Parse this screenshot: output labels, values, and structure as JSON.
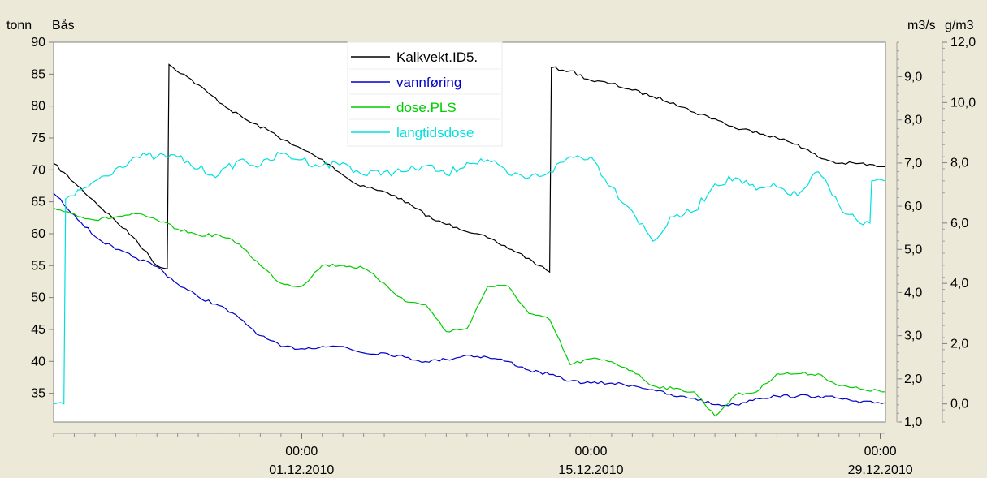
{
  "chart_data": {
    "type": "line",
    "left_axis_units": [
      "tonn",
      "Bås"
    ],
    "axes": {
      "left": {
        "min": 30.5,
        "max": 90,
        "ticks": [
          90,
          85,
          80,
          75,
          70,
          65,
          60,
          55,
          50,
          45,
          40,
          35
        ]
      },
      "mid": {
        "unit": "m3/s",
        "min": 1.0,
        "max": 9.8,
        "ticks": [
          "9,0",
          "8,0",
          "7,0",
          "6,0",
          "5,0",
          "4,0",
          "3,0",
          "2,0",
          "1,0"
        ]
      },
      "right": {
        "unit": "g/m3",
        "min": -0.6,
        "max": 12.0,
        "ticks": [
          "12,0",
          "10,0",
          "8,0",
          "6,0",
          "4,0",
          "2,0",
          "0,0"
        ]
      }
    },
    "x_range": [
      "2010-11-19",
      "2010-12-29T06:00"
    ],
    "x_ticks": [
      {
        "date": "2010-12-01",
        "time": "00:00",
        "label": "01.12.2010"
      },
      {
        "date": "2010-12-15",
        "time": "00:00",
        "label": "15.12.2010"
      },
      {
        "date": "2010-12-29",
        "time": "00:00",
        "label": "29.12.2010"
      }
    ],
    "legend_position": "top-center",
    "series": [
      {
        "name": "Kalkvekt.ID5.",
        "axis": "left",
        "color": "#000000",
        "points": [
          [
            "2010-11-19T00:00",
            71.0
          ],
          [
            "2010-11-20T00:00",
            68.0
          ],
          [
            "2010-11-21T00:00",
            65.0
          ],
          [
            "2010-11-22T00:00",
            62.0
          ],
          [
            "2010-11-23T00:00",
            59.0
          ],
          [
            "2010-11-24T00:00",
            55.0
          ],
          [
            "2010-11-24T12:00",
            54.5
          ],
          [
            "2010-11-24T14:00",
            86.5
          ],
          [
            "2010-11-25T12:00",
            84.5
          ],
          [
            "2010-11-26T12:00",
            82.0
          ],
          [
            "2010-11-27T12:00",
            79.5
          ],
          [
            "2010-11-28T12:00",
            77.5
          ],
          [
            "2010-11-29T12:00",
            76.0
          ],
          [
            "2010-11-30T12:00",
            74.0
          ],
          [
            "2010-12-01T12:00",
            72.5
          ],
          [
            "2010-12-02T12:00",
            70.5
          ],
          [
            "2010-12-03T12:00",
            68.0
          ],
          [
            "2010-12-04T12:00",
            67.0
          ],
          [
            "2010-12-05T12:00",
            66.0
          ],
          [
            "2010-12-06T12:00",
            64.0
          ],
          [
            "2010-12-07T12:00",
            62.0
          ],
          [
            "2010-12-08T12:00",
            61.0
          ],
          [
            "2010-12-09T12:00",
            60.0
          ],
          [
            "2010-12-10T12:00",
            58.5
          ],
          [
            "2010-12-11T12:00",
            57.0
          ],
          [
            "2010-12-12T12:00",
            55.0
          ],
          [
            "2010-12-13T00:00",
            54.0
          ],
          [
            "2010-12-13T02:00",
            86.0
          ],
          [
            "2010-12-14T00:00",
            85.5
          ],
          [
            "2010-12-15T00:00",
            84.0
          ],
          [
            "2010-12-16T00:00",
            83.5
          ],
          [
            "2010-12-17T00:00",
            82.5
          ],
          [
            "2010-12-18T00:00",
            81.5
          ],
          [
            "2010-12-19T00:00",
            80.5
          ],
          [
            "2010-12-20T00:00",
            79.0
          ],
          [
            "2010-12-21T00:00",
            78.0
          ],
          [
            "2010-12-22T00:00",
            76.5
          ],
          [
            "2010-12-23T00:00",
            76.0
          ],
          [
            "2010-12-24T00:00",
            75.0
          ],
          [
            "2010-12-25T00:00",
            74.0
          ],
          [
            "2010-12-26T00:00",
            72.0
          ],
          [
            "2010-12-27T00:00",
            71.0
          ],
          [
            "2010-12-28T00:00",
            71.0
          ],
          [
            "2010-12-29T00:00",
            70.5
          ],
          [
            "2010-12-29T06:00",
            70.5
          ]
        ]
      },
      {
        "name": "vannføring",
        "axis": "mid",
        "color": "#0000cc",
        "points": [
          [
            "2010-11-19T00:00",
            6.3
          ],
          [
            "2010-11-20T00:00",
            5.8
          ],
          [
            "2010-11-21T00:00",
            5.3
          ],
          [
            "2010-11-22T00:00",
            5.0
          ],
          [
            "2010-11-23T00:00",
            4.8
          ],
          [
            "2010-11-24T00:00",
            4.6
          ],
          [
            "2010-11-25T00:00",
            4.2
          ],
          [
            "2010-11-26T00:00",
            3.9
          ],
          [
            "2010-11-27T00:00",
            3.7
          ],
          [
            "2010-11-28T00:00",
            3.4
          ],
          [
            "2010-11-29T00:00",
            3.0
          ],
          [
            "2010-11-30T00:00",
            2.75
          ],
          [
            "2010-12-01T00:00",
            2.7
          ],
          [
            "2010-12-02T00:00",
            2.75
          ],
          [
            "2010-12-03T00:00",
            2.75
          ],
          [
            "2010-12-04T00:00",
            2.6
          ],
          [
            "2010-12-05T00:00",
            2.6
          ],
          [
            "2010-12-06T00:00",
            2.5
          ],
          [
            "2010-12-07T00:00",
            2.4
          ],
          [
            "2010-12-08T00:00",
            2.45
          ],
          [
            "2010-12-09T00:00",
            2.55
          ],
          [
            "2010-12-10T00:00",
            2.5
          ],
          [
            "2010-12-11T00:00",
            2.4
          ],
          [
            "2010-12-12T00:00",
            2.2
          ],
          [
            "2010-12-13T00:00",
            2.1
          ],
          [
            "2010-12-14T00:00",
            1.95
          ],
          [
            "2010-12-15T00:00",
            1.9
          ],
          [
            "2010-12-16T00:00",
            1.9
          ],
          [
            "2010-12-17T00:00",
            1.85
          ],
          [
            "2010-12-18T00:00",
            1.75
          ],
          [
            "2010-12-19T00:00",
            1.6
          ],
          [
            "2010-12-20T00:00",
            1.55
          ],
          [
            "2010-12-21T00:00",
            1.4
          ],
          [
            "2010-12-22T00:00",
            1.4
          ],
          [
            "2010-12-23T00:00",
            1.55
          ],
          [
            "2010-12-24T00:00",
            1.6
          ],
          [
            "2010-12-25T00:00",
            1.6
          ],
          [
            "2010-12-26T00:00",
            1.6
          ],
          [
            "2010-12-27T00:00",
            1.55
          ],
          [
            "2010-12-28T00:00",
            1.45
          ],
          [
            "2010-12-29T06:00",
            1.45
          ]
        ]
      },
      {
        "name": "dose.PLS",
        "axis": "right",
        "color": "#00cc00",
        "points": [
          [
            "2010-11-19T00:00",
            6.5
          ],
          [
            "2010-11-20T00:00",
            6.3
          ],
          [
            "2010-11-21T00:00",
            6.1
          ],
          [
            "2010-11-22T00:00",
            6.2
          ],
          [
            "2010-11-23T00:00",
            6.3
          ],
          [
            "2010-11-24T00:00",
            6.1
          ],
          [
            "2010-11-25T00:00",
            5.8
          ],
          [
            "2010-11-26T00:00",
            5.6
          ],
          [
            "2010-11-27T00:00",
            5.6
          ],
          [
            "2010-11-28T00:00",
            5.3
          ],
          [
            "2010-11-29T00:00",
            4.6
          ],
          [
            "2010-11-30T00:00",
            4.0
          ],
          [
            "2010-12-01T00:00",
            3.9
          ],
          [
            "2010-12-02T00:00",
            4.6
          ],
          [
            "2010-12-03T00:00",
            4.6
          ],
          [
            "2010-12-04T00:00",
            4.5
          ],
          [
            "2010-12-05T00:00",
            4.0
          ],
          [
            "2010-12-06T00:00",
            3.4
          ],
          [
            "2010-12-07T00:00",
            3.3
          ],
          [
            "2010-12-08T00:00",
            2.4
          ],
          [
            "2010-12-09T00:00",
            2.5
          ],
          [
            "2010-12-10T00:00",
            3.9
          ],
          [
            "2010-12-11T00:00",
            3.9
          ],
          [
            "2010-12-12T00:00",
            3.0
          ],
          [
            "2010-12-13T00:00",
            2.8
          ],
          [
            "2010-12-14T00:00",
            1.3
          ],
          [
            "2010-12-15T00:00",
            1.5
          ],
          [
            "2010-12-16T00:00",
            1.4
          ],
          [
            "2010-12-17T00:00",
            1.1
          ],
          [
            "2010-12-18T00:00",
            0.6
          ],
          [
            "2010-12-19T00:00",
            0.5
          ],
          [
            "2010-12-20T00:00",
            0.4
          ],
          [
            "2010-12-21T00:00",
            -0.4
          ],
          [
            "2010-12-22T00:00",
            0.3
          ],
          [
            "2010-12-23T00:00",
            0.4
          ],
          [
            "2010-12-24T00:00",
            1.0
          ],
          [
            "2010-12-25T00:00",
            1.0
          ],
          [
            "2010-12-26T00:00",
            1.0
          ],
          [
            "2010-12-27T00:00",
            0.6
          ],
          [
            "2010-12-28T00:00",
            0.5
          ],
          [
            "2010-12-29T06:00",
            0.4
          ]
        ]
      },
      {
        "name": "langtidsdose",
        "axis": "right",
        "color": "#00e0e0",
        "points": [
          [
            "2010-11-19T00:00",
            0.0
          ],
          [
            "2010-11-19T12:00",
            0.0
          ],
          [
            "2010-11-19T14:00",
            6.8
          ],
          [
            "2010-11-20T00:00",
            6.9
          ],
          [
            "2010-11-21T00:00",
            7.4
          ],
          [
            "2010-11-22T00:00",
            7.8
          ],
          [
            "2010-11-23T00:00",
            8.2
          ],
          [
            "2010-11-24T00:00",
            8.2
          ],
          [
            "2010-11-25T00:00",
            8.2
          ],
          [
            "2010-11-26T00:00",
            7.8
          ],
          [
            "2010-11-27T00:00",
            7.6
          ],
          [
            "2010-11-28T00:00",
            8.1
          ],
          [
            "2010-11-29T00:00",
            7.9
          ],
          [
            "2010-11-30T00:00",
            8.3
          ],
          [
            "2010-12-01T00:00",
            8.1
          ],
          [
            "2010-12-02T00:00",
            7.9
          ],
          [
            "2010-12-03T00:00",
            8.0
          ],
          [
            "2010-12-04T00:00",
            7.6
          ],
          [
            "2010-12-05T00:00",
            7.7
          ],
          [
            "2010-12-06T00:00",
            7.7
          ],
          [
            "2010-12-07T00:00",
            7.9
          ],
          [
            "2010-12-08T00:00",
            7.6
          ],
          [
            "2010-12-09T00:00",
            8.0
          ],
          [
            "2010-12-10T00:00",
            8.1
          ],
          [
            "2010-12-11T00:00",
            7.6
          ],
          [
            "2010-12-12T00:00",
            7.5
          ],
          [
            "2010-12-13T00:00",
            7.7
          ],
          [
            "2010-12-14T00:00",
            8.2
          ],
          [
            "2010-12-15T00:00",
            8.2
          ],
          [
            "2010-12-16T00:00",
            7.2
          ],
          [
            "2010-12-17T00:00",
            6.4
          ],
          [
            "2010-12-18T00:00",
            5.4
          ],
          [
            "2010-12-19T00:00",
            6.2
          ],
          [
            "2010-12-20T00:00",
            6.4
          ],
          [
            "2010-12-21T00:00",
            7.3
          ],
          [
            "2010-12-22T00:00",
            7.5
          ],
          [
            "2010-12-23T00:00",
            7.1
          ],
          [
            "2010-12-24T00:00",
            7.2
          ],
          [
            "2010-12-25T00:00",
            6.9
          ],
          [
            "2010-12-26T00:00",
            7.7
          ],
          [
            "2010-12-27T00:00",
            6.6
          ],
          [
            "2010-12-28T00:00",
            6.0
          ],
          [
            "2010-12-28T12:00",
            6.0
          ],
          [
            "2010-12-28T14:00",
            7.4
          ],
          [
            "2010-12-29T06:00",
            7.4
          ]
        ]
      }
    ]
  }
}
